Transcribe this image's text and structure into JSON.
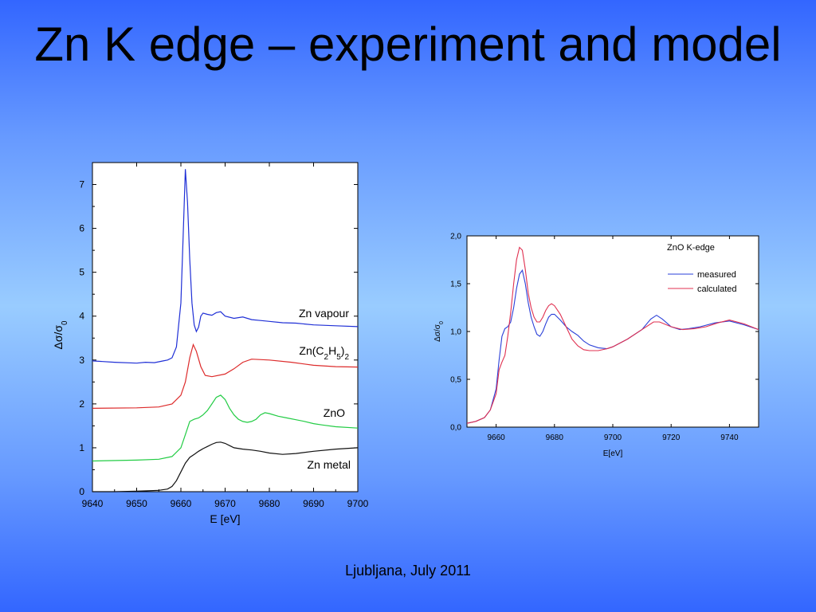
{
  "slide": {
    "title": "Zn K edge – experiment and model",
    "footer": "Ljubljana, July 2011"
  },
  "colors": {
    "background_top": "#3366ff",
    "background_mid": "#99ccff",
    "plot_background": "#ffffff",
    "zn_vapour": "#1f2fd6",
    "zn_c2h5": "#dd2b2b",
    "zno": "#22cc44",
    "zn_metal": "#111111",
    "measured": "#2a3fd8",
    "calculated": "#e03050"
  },
  "chart_data": [
    {
      "type": "line",
      "xlabel": "E [eV]",
      "ylabel": "Δσ/σ0",
      "xlim": [
        9640,
        9700
      ],
      "ylim": [
        0,
        7.5
      ],
      "xticks": [
        "9640",
        "9650",
        "9660",
        "9670",
        "9680",
        "9690",
        "9700"
      ],
      "yticks": [
        "0",
        "1",
        "2",
        "3",
        "4",
        "5",
        "6",
        "7"
      ],
      "grid": false,
      "legend": "inline labels",
      "series": [
        {
          "name": "Zn vapour",
          "label_parts": [
            "Zn vapour"
          ],
          "color_key": "zn_vapour",
          "points": [
            [
              9640,
              2.98
            ],
            [
              9645,
              2.95
            ],
            [
              9650,
              2.93
            ],
            [
              9652,
              2.95
            ],
            [
              9654,
              2.94
            ],
            [
              9656,
              2.98
            ],
            [
              9657,
              3.0
            ],
            [
              9658,
              3.05
            ],
            [
              9659,
              3.3
            ],
            [
              9660,
              4.3
            ],
            [
              9660.5,
              5.8
            ],
            [
              9661,
              7.35
            ],
            [
              9661.5,
              6.6
            ],
            [
              9662,
              5.3
            ],
            [
              9662.5,
              4.3
            ],
            [
              9663,
              3.8
            ],
            [
              9663.5,
              3.65
            ],
            [
              9664,
              3.75
            ],
            [
              9664.5,
              4.0
            ],
            [
              9665,
              4.07
            ],
            [
              9666,
              4.04
            ],
            [
              9667,
              4.02
            ],
            [
              9668,
              4.08
            ],
            [
              9669,
              4.1
            ],
            [
              9670,
              4.0
            ],
            [
              9672,
              3.95
            ],
            [
              9674,
              3.98
            ],
            [
              9676,
              3.92
            ],
            [
              9678,
              3.9
            ],
            [
              9680,
              3.88
            ],
            [
              9683,
              3.85
            ],
            [
              9686,
              3.84
            ],
            [
              9690,
              3.8
            ],
            [
              9695,
              3.78
            ],
            [
              9700,
              3.76
            ]
          ]
        },
        {
          "name": "Zn(C2H5)2",
          "label_parts": [
            "Zn(C",
            "2",
            "H",
            "5",
            ")",
            "2"
          ],
          "color_key": "zn_c2h5",
          "points": [
            [
              9640,
              1.9
            ],
            [
              9650,
              1.91
            ],
            [
              9655,
              1.93
            ],
            [
              9658,
              2.0
            ],
            [
              9660,
              2.2
            ],
            [
              9661,
              2.5
            ],
            [
              9662,
              3.05
            ],
            [
              9662.8,
              3.35
            ],
            [
              9663.5,
              3.2
            ],
            [
              9664.5,
              2.85
            ],
            [
              9665.5,
              2.65
            ],
            [
              9667,
              2.62
            ],
            [
              9670,
              2.68
            ],
            [
              9672,
              2.8
            ],
            [
              9674,
              2.95
            ],
            [
              9676,
              3.02
            ],
            [
              9680,
              3.0
            ],
            [
              9685,
              2.95
            ],
            [
              9690,
              2.88
            ],
            [
              9695,
              2.85
            ],
            [
              9700,
              2.84
            ]
          ]
        },
        {
          "name": "ZnO",
          "label_parts": [
            "ZnO"
          ],
          "color_key": "zno",
          "points": [
            [
              9640,
              0.7
            ],
            [
              9650,
              0.72
            ],
            [
              9655,
              0.74
            ],
            [
              9658,
              0.8
            ],
            [
              9660,
              1.0
            ],
            [
              9661,
              1.3
            ],
            [
              9662,
              1.6
            ],
            [
              9663,
              1.65
            ],
            [
              9664,
              1.68
            ],
            [
              9665,
              1.75
            ],
            [
              9666,
              1.85
            ],
            [
              9667,
              2.0
            ],
            [
              9668,
              2.15
            ],
            [
              9669,
              2.2
            ],
            [
              9670,
              2.1
            ],
            [
              9671,
              1.9
            ],
            [
              9672,
              1.75
            ],
            [
              9673,
              1.65
            ],
            [
              9674,
              1.6
            ],
            [
              9675,
              1.58
            ],
            [
              9676,
              1.6
            ],
            [
              9677,
              1.65
            ],
            [
              9678,
              1.75
            ],
            [
              9679,
              1.8
            ],
            [
              9680,
              1.78
            ],
            [
              9682,
              1.72
            ],
            [
              9684,
              1.68
            ],
            [
              9686,
              1.64
            ],
            [
              9688,
              1.6
            ],
            [
              9690,
              1.55
            ],
            [
              9692,
              1.52
            ],
            [
              9695,
              1.48
            ],
            [
              9700,
              1.45
            ]
          ]
        },
        {
          "name": "Zn metal",
          "label_parts": [
            "Zn metal"
          ],
          "color_key": "zn_metal",
          "points": [
            [
              9640,
              0.0
            ],
            [
              9645,
              0.0
            ],
            [
              9650,
              0.01
            ],
            [
              9655,
              0.03
            ],
            [
              9657,
              0.06
            ],
            [
              9658,
              0.12
            ],
            [
              9659,
              0.25
            ],
            [
              9660,
              0.45
            ],
            [
              9661,
              0.65
            ],
            [
              9662,
              0.78
            ],
            [
              9663,
              0.85
            ],
            [
              9664,
              0.92
            ],
            [
              9665,
              0.98
            ],
            [
              9666,
              1.03
            ],
            [
              9667,
              1.08
            ],
            [
              9668,
              1.12
            ],
            [
              9669,
              1.13
            ],
            [
              9670,
              1.1
            ],
            [
              9671,
              1.05
            ],
            [
              9672,
              1.0
            ],
            [
              9674,
              0.97
            ],
            [
              9676,
              0.95
            ],
            [
              9678,
              0.92
            ],
            [
              9680,
              0.88
            ],
            [
              9683,
              0.85
            ],
            [
              9686,
              0.87
            ],
            [
              9690,
              0.92
            ],
            [
              9695,
              0.97
            ],
            [
              9700,
              1.0
            ]
          ]
        }
      ]
    },
    {
      "type": "line",
      "title": "ZnO K-edge",
      "xlabel": "E[eV]",
      "ylabel": "Δσ/σ0",
      "xlim": [
        9650,
        9750
      ],
      "ylim": [
        0,
        2.0
      ],
      "xticks": [
        "9660",
        "9680",
        "9700",
        "9720",
        "9740"
      ],
      "yticks": [
        "0,0",
        "0,5",
        "1,0",
        "1,5",
        "2,0"
      ],
      "grid": false,
      "legend": "top-right",
      "series": [
        {
          "name": "measured",
          "color_key": "measured",
          "points": [
            [
              9650,
              0.04
            ],
            [
              9653,
              0.06
            ],
            [
              9656,
              0.1
            ],
            [
              9658,
              0.18
            ],
            [
              9660,
              0.4
            ],
            [
              9661,
              0.7
            ],
            [
              9662,
              0.95
            ],
            [
              9663,
              1.03
            ],
            [
              9664,
              1.05
            ],
            [
              9665,
              1.1
            ],
            [
              9666,
              1.25
            ],
            [
              9667,
              1.45
            ],
            [
              9668,
              1.6
            ],
            [
              9669,
              1.64
            ],
            [
              9670,
              1.5
            ],
            [
              9671,
              1.3
            ],
            [
              9672,
              1.15
            ],
            [
              9673,
              1.05
            ],
            [
              9674,
              0.97
            ],
            [
              9675,
              0.95
            ],
            [
              9676,
              1.0
            ],
            [
              9677,
              1.08
            ],
            [
              9678,
              1.15
            ],
            [
              9679,
              1.18
            ],
            [
              9680,
              1.18
            ],
            [
              9682,
              1.12
            ],
            [
              9684,
              1.05
            ],
            [
              9686,
              1.0
            ],
            [
              9688,
              0.96
            ],
            [
              9690,
              0.9
            ],
            [
              9692,
              0.86
            ],
            [
              9695,
              0.83
            ],
            [
              9698,
              0.82
            ],
            [
              9700,
              0.84
            ],
            [
              9705,
              0.92
            ],
            [
              9710,
              1.02
            ],
            [
              9713,
              1.13
            ],
            [
              9715,
              1.17
            ],
            [
              9717,
              1.13
            ],
            [
              9720,
              1.05
            ],
            [
              9723,
              1.02
            ],
            [
              9726,
              1.03
            ],
            [
              9730,
              1.05
            ],
            [
              9735,
              1.09
            ],
            [
              9740,
              1.11
            ],
            [
              9745,
              1.07
            ],
            [
              9750,
              1.02
            ]
          ]
        },
        {
          "name": "calculated",
          "color_key": "calculated",
          "points": [
            [
              9650,
              0.04
            ],
            [
              9653,
              0.06
            ],
            [
              9656,
              0.1
            ],
            [
              9658,
              0.18
            ],
            [
              9660,
              0.35
            ],
            [
              9661,
              0.6
            ],
            [
              9662,
              0.68
            ],
            [
              9663,
              0.75
            ],
            [
              9664,
              0.95
            ],
            [
              9665,
              1.2
            ],
            [
              9666,
              1.5
            ],
            [
              9667,
              1.75
            ],
            [
              9668,
              1.88
            ],
            [
              9669,
              1.85
            ],
            [
              9670,
              1.65
            ],
            [
              9671,
              1.4
            ],
            [
              9672,
              1.25
            ],
            [
              9673,
              1.15
            ],
            [
              9674,
              1.1
            ],
            [
              9675,
              1.1
            ],
            [
              9676,
              1.15
            ],
            [
              9677,
              1.22
            ],
            [
              9678,
              1.27
            ],
            [
              9679,
              1.29
            ],
            [
              9680,
              1.27
            ],
            [
              9682,
              1.18
            ],
            [
              9684,
              1.05
            ],
            [
              9686,
              0.92
            ],
            [
              9688,
              0.85
            ],
            [
              9690,
              0.81
            ],
            [
              9692,
              0.8
            ],
            [
              9695,
              0.8
            ],
            [
              9698,
              0.82
            ],
            [
              9700,
              0.84
            ],
            [
              9705,
              0.92
            ],
            [
              9710,
              1.02
            ],
            [
              9714,
              1.1
            ],
            [
              9716,
              1.1
            ],
            [
              9720,
              1.05
            ],
            [
              9724,
              1.02
            ],
            [
              9728,
              1.03
            ],
            [
              9732,
              1.05
            ],
            [
              9736,
              1.09
            ],
            [
              9740,
              1.12
            ],
            [
              9745,
              1.08
            ],
            [
              9750,
              1.02
            ]
          ]
        }
      ]
    }
  ]
}
